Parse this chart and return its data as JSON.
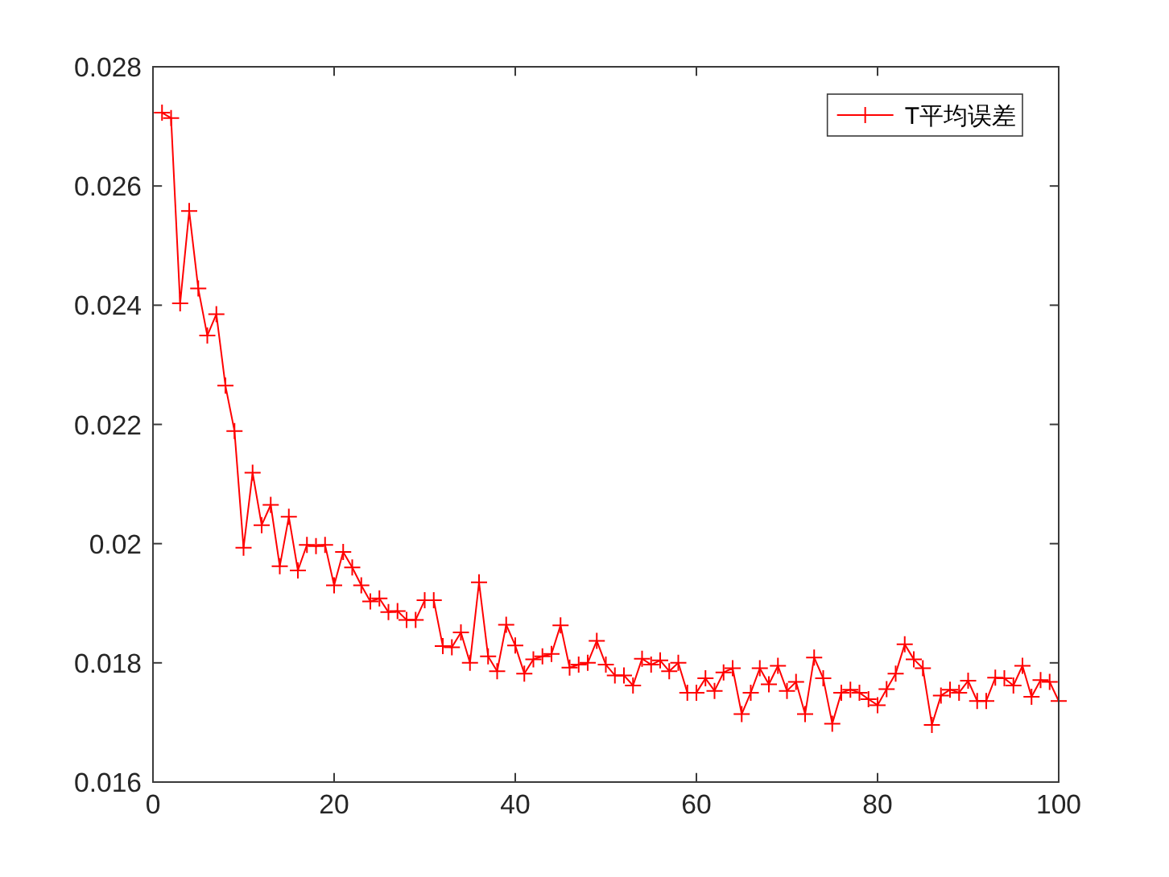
{
  "chart_data": {
    "type": "line",
    "x": [
      1,
      2,
      3,
      4,
      5,
      6,
      7,
      8,
      9,
      10,
      11,
      12,
      13,
      14,
      15,
      16,
      17,
      18,
      19,
      20,
      21,
      22,
      23,
      24,
      25,
      26,
      27,
      28,
      29,
      30,
      31,
      32,
      33,
      34,
      35,
      36,
      37,
      38,
      39,
      40,
      41,
      42,
      43,
      44,
      45,
      46,
      47,
      48,
      49,
      50,
      51,
      52,
      53,
      54,
      55,
      56,
      57,
      58,
      59,
      60,
      61,
      62,
      63,
      64,
      65,
      66,
      67,
      68,
      69,
      70,
      71,
      72,
      73,
      74,
      75,
      76,
      77,
      78,
      79,
      80,
      81,
      82,
      83,
      84,
      85,
      86,
      87,
      88,
      89,
      90,
      91,
      92,
      93,
      94,
      95,
      96,
      97,
      98,
      99,
      100
    ],
    "series": [
      {
        "name": "T平均误差",
        "color": "#ff0000",
        "values": [
          0.02723,
          0.02714,
          0.02403,
          0.02558,
          0.02428,
          0.02349,
          0.02385,
          0.02265,
          0.02189,
          0.01993,
          0.02119,
          0.02031,
          0.02065,
          0.01962,
          0.02045,
          0.01955,
          0.01998,
          0.01996,
          0.01998,
          0.0193,
          0.01986,
          0.0196,
          0.0193,
          0.01903,
          0.01908,
          0.01885,
          0.01887,
          0.01872,
          0.01872,
          0.01905,
          0.01905,
          0.01828,
          0.01826,
          0.01851,
          0.018,
          0.01935,
          0.01811,
          0.01786,
          0.01864,
          0.01829,
          0.01782,
          0.01806,
          0.01811,
          0.01815,
          0.01863,
          0.01792,
          0.01797,
          0.018,
          0.01837,
          0.01797,
          0.01779,
          0.01779,
          0.01762,
          0.01807,
          0.01797,
          0.01804,
          0.01786,
          0.018,
          0.0175,
          0.0175,
          0.01774,
          0.01753,
          0.01784,
          0.01791,
          0.01714,
          0.0175,
          0.01791,
          0.01764,
          0.01795,
          0.01753,
          0.01768,
          0.01714,
          0.01809,
          0.01774,
          0.01698,
          0.0175,
          0.01755,
          0.0175,
          0.01739,
          0.01729,
          0.01756,
          0.01782,
          0.01831,
          0.01806,
          0.01791,
          0.01696,
          0.01745,
          0.01755,
          0.0175,
          0.0177,
          0.01736,
          0.01736,
          0.01775,
          0.01774,
          0.01762,
          0.01795,
          0.01743,
          0.01771,
          0.01768,
          0.01736
        ]
      }
    ],
    "xlim": [
      0,
      100
    ],
    "ylim": [
      0.016,
      0.028
    ],
    "xticks": [
      0,
      20,
      40,
      60,
      80,
      100
    ],
    "yticks": [
      0.016,
      0.018,
      0.02,
      0.022,
      0.024,
      0.026,
      0.028
    ],
    "legend": "top right",
    "marker": "cross",
    "line_style": "solid"
  }
}
